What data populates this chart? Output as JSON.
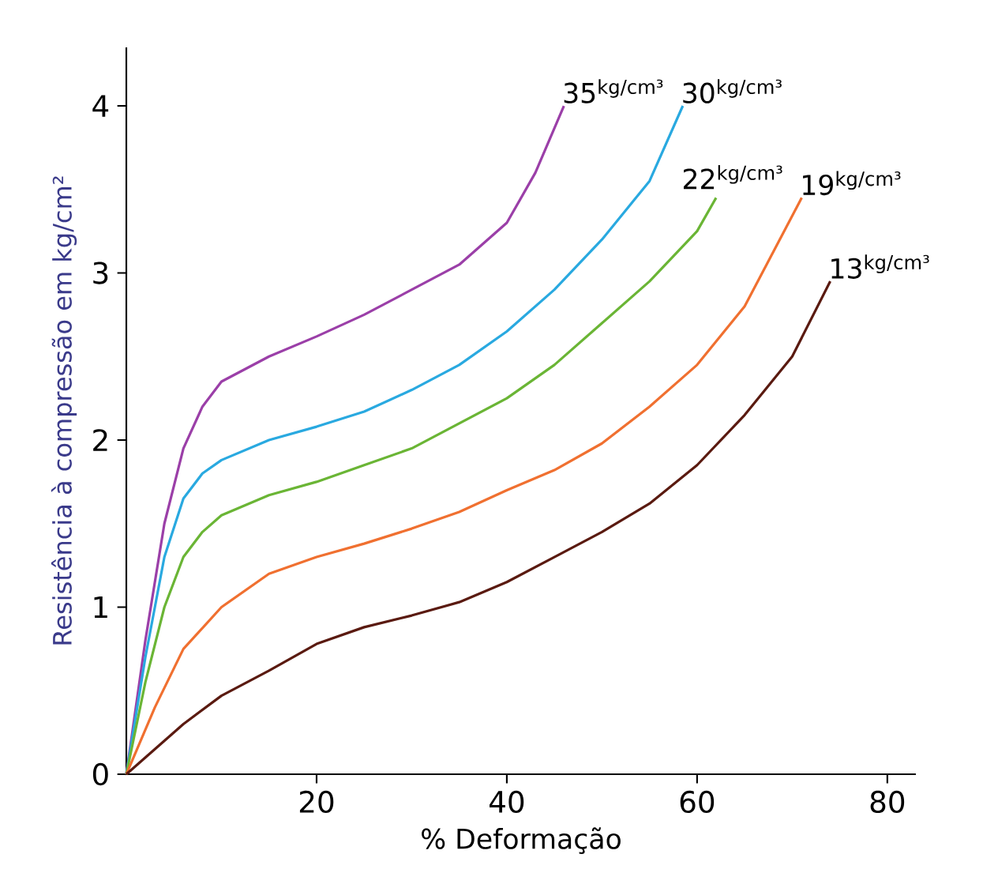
{
  "chart_data": {
    "type": "line",
    "xlabel": "% Deformação",
    "ylabel": "Resistência à compressão em kg/cm²",
    "xlim": [
      0,
      83
    ],
    "ylim": [
      0,
      4.35
    ],
    "xticks": [
      20,
      40,
      60,
      80
    ],
    "yticks": [
      0,
      1,
      2,
      3,
      4
    ],
    "grid": false,
    "legend": false,
    "marker": "none",
    "line_style": "solid",
    "series": [
      {
        "name": "35$^{kg/cm³}$",
        "color": "#9b3fa8",
        "x": [
          0,
          2,
          4,
          6,
          8,
          10,
          15,
          20,
          25,
          30,
          35,
          40,
          43,
          46
        ],
        "values": [
          0,
          0.8,
          1.5,
          1.95,
          2.2,
          2.35,
          2.5,
          2.62,
          2.75,
          2.9,
          3.05,
          3.3,
          3.6,
          4.0
        ]
      },
      {
        "name": "30$^{kg/cm³}$",
        "color": "#29a9e0",
        "x": [
          0,
          2,
          4,
          6,
          8,
          10,
          15,
          20,
          25,
          30,
          35,
          40,
          45,
          50,
          55,
          58.5
        ],
        "values": [
          0,
          0.7,
          1.3,
          1.65,
          1.8,
          1.88,
          2.0,
          2.08,
          2.17,
          2.3,
          2.45,
          2.65,
          2.9,
          3.2,
          3.55,
          4.0
        ]
      },
      {
        "name": "22$^{kg/cm³}$",
        "color": "#6ab535",
        "x": [
          0,
          2,
          4,
          6,
          8,
          10,
          15,
          20,
          25,
          30,
          35,
          40,
          45,
          50,
          55,
          60,
          62
        ],
        "values": [
          0,
          0.55,
          1.0,
          1.3,
          1.45,
          1.55,
          1.67,
          1.75,
          1.85,
          1.95,
          2.1,
          2.25,
          2.45,
          2.7,
          2.95,
          3.25,
          3.45
        ]
      },
      {
        "name": "19$^{kg/cm³}$",
        "color": "#f07030",
        "x": [
          0,
          3,
          6,
          10,
          15,
          20,
          25,
          30,
          35,
          40,
          45,
          50,
          55,
          60,
          65,
          71
        ],
        "values": [
          0,
          0.4,
          0.75,
          1.0,
          1.2,
          1.3,
          1.38,
          1.47,
          1.57,
          1.7,
          1.82,
          1.98,
          2.2,
          2.45,
          2.8,
          3.45
        ]
      },
      {
        "name": "13$^{kg/cm³}$",
        "color": "#5a1a10",
        "x": [
          0,
          3,
          6,
          10,
          15,
          20,
          25,
          30,
          35,
          40,
          45,
          50,
          55,
          60,
          65,
          70,
          74
        ],
        "values": [
          0,
          0.15,
          0.3,
          0.47,
          0.62,
          0.78,
          0.88,
          0.95,
          1.03,
          1.15,
          1.3,
          1.45,
          1.62,
          1.85,
          2.15,
          2.5,
          2.95
        ]
      }
    ]
  }
}
